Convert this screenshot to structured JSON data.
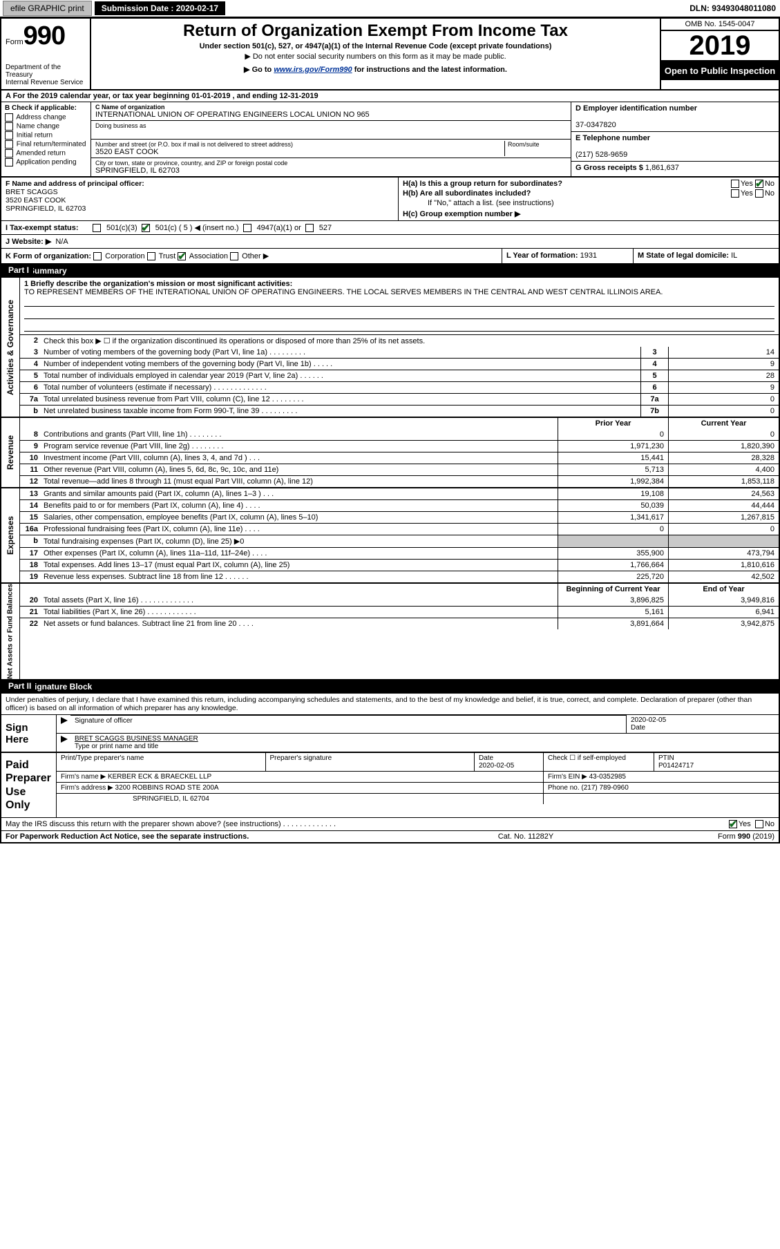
{
  "top": {
    "efile_label": "efile GRAPHIC print",
    "submission_label": "Submission Date : 2020-02-17",
    "dln_label": "DLN: 93493048011080"
  },
  "header": {
    "form_prefix": "Form",
    "form_number": "990",
    "dept1": "Department of the Treasury",
    "dept2": "Internal Revenue Service",
    "title": "Return of Organization Exempt From Income Tax",
    "subtitle": "Under section 501(c), 527, or 4947(a)(1) of the Internal Revenue Code (except private foundations)",
    "note1": "▶ Do not enter social security numbers on this form as it may be made public.",
    "note2_prefix": "▶ Go to ",
    "note2_link": "www.irs.gov/Form990",
    "note2_suffix": " for instructions and the latest information.",
    "omb": "OMB No. 1545-0047",
    "year": "2019",
    "open_public": "Open to Public Inspection"
  },
  "period": {
    "line_a": "A For the 2019 calendar year, or tax year beginning 01-01-2019   , and ending 12-31-2019"
  },
  "block_b": {
    "title": "B Check if applicable:",
    "opts": [
      "Address change",
      "Name change",
      "Initial return",
      "Final return/terminated",
      "Amended return",
      "Application pending"
    ]
  },
  "block_c": {
    "name_label": "C Name of organization",
    "name": "INTERNATIONAL UNION OF OPERATING ENGINEERS LOCAL UNION NO 965",
    "dba_label": "Doing business as",
    "addr_label": "Number and street (or P.O. box if mail is not delivered to street address)",
    "room_label": "Room/suite",
    "addr": "3520 EAST COOK",
    "city_label": "City or town, state or province, country, and ZIP or foreign postal code",
    "city": "SPRINGFIELD, IL  62703"
  },
  "block_d": {
    "label": "D Employer identification number",
    "value": "37-0347820"
  },
  "block_e": {
    "label": "E Telephone number",
    "value": "(217) 528-9659"
  },
  "block_g": {
    "label": "G Gross receipts $",
    "value": "1,861,637"
  },
  "block_f": {
    "label": "F Name and address of principal officer:",
    "line1": "BRET SCAGGS",
    "line2": "3520 EAST COOK",
    "line3": "SPRINGFIELD, IL  62703"
  },
  "block_h": {
    "ha": "H(a)  Is this a group return for subordinates?",
    "ha_yes": "Yes",
    "ha_no": "No",
    "hb": "H(b)  Are all subordinates included?",
    "hb_yes": "Yes",
    "hb_no": "No",
    "hb_note": "If \"No,\" attach a list. (see instructions)",
    "hc": "H(c)  Group exemption number ▶"
  },
  "block_i": {
    "label": "I  Tax-exempt status:",
    "o1": "501(c)(3)",
    "o2": "501(c) ( 5 ) ◀ (insert no.)",
    "o3": "4947(a)(1) or",
    "o4": "527"
  },
  "block_j": {
    "label": "J  Website: ▶",
    "value": "N/A"
  },
  "block_k": {
    "label": "K Form of organization:",
    "opts": [
      "Corporation",
      "Trust",
      "Association",
      "Other ▶"
    ]
  },
  "block_l": {
    "label": "L Year of formation:",
    "value": "1931"
  },
  "block_m": {
    "label": "M State of legal domicile:",
    "value": "IL"
  },
  "part1": {
    "tag": "Part I",
    "title": "Summary",
    "mission_label": "1  Briefly describe the organization's mission or most significant activities:",
    "mission": "TO REPRESENT MEMBERS OF THE INTERATIONAL UNION OF OPERATING ENGINEERS. THE LOCAL SERVES MEMBERS IN THE CENTRAL AND WEST CENTRAL ILLINOIS AREA.",
    "line2": "Check this box ▶ ☐  if the organization discontinued its operations or disposed of more than 25% of its net assets.",
    "sidetab_ag": "Activities & Governance",
    "sidetab_rev": "Revenue",
    "sidetab_exp": "Expenses",
    "sidetab_net": "Net Assets or Fund Balances",
    "rows_ag": [
      {
        "n": "3",
        "d": "Number of voting members of the governing body (Part VI, line 1a)  .  .  .  .  .  .  .  .  .",
        "b": "3",
        "v": "14"
      },
      {
        "n": "4",
        "d": "Number of independent voting members of the governing body (Part VI, line 1b)  .  .  .  .  .",
        "b": "4",
        "v": "9"
      },
      {
        "n": "5",
        "d": "Total number of individuals employed in calendar year 2019 (Part V, line 2a)  .  .  .  .  .  .",
        "b": "5",
        "v": "28"
      },
      {
        "n": "6",
        "d": "Total number of volunteers (estimate if necessary)  .  .  .  .  .  .  .  .  .  .  .  .  .",
        "b": "6",
        "v": "9"
      },
      {
        "n": "7a",
        "d": "Total unrelated business revenue from Part VIII, column (C), line 12  .  .  .  .  .  .  .  .",
        "b": "7a",
        "v": "0"
      },
      {
        "n": "b",
        "d": "Net unrelated business taxable income from Form 990-T, line 39  .  .  .  .  .  .  .  .  .",
        "b": "7b",
        "v": "0"
      }
    ],
    "col_head_prior": "Prior Year",
    "col_head_current": "Current Year",
    "rows_rev": [
      {
        "n": "8",
        "d": "Contributions and grants (Part VIII, line 1h)  .  .  .  .  .  .  .  .",
        "p": "0",
        "c": "0"
      },
      {
        "n": "9",
        "d": "Program service revenue (Part VIII, line 2g)  .  .  .  .  .  .  .  .",
        "p": "1,971,230",
        "c": "1,820,390"
      },
      {
        "n": "10",
        "d": "Investment income (Part VIII, column (A), lines 3, 4, and 7d )  .  .  .",
        "p": "15,441",
        "c": "28,328"
      },
      {
        "n": "11",
        "d": "Other revenue (Part VIII, column (A), lines 5, 6d, 8c, 9c, 10c, and 11e)",
        "p": "5,713",
        "c": "4,400"
      },
      {
        "n": "12",
        "d": "Total revenue—add lines 8 through 11 (must equal Part VIII, column (A), line 12)",
        "p": "1,992,384",
        "c": "1,853,118"
      }
    ],
    "rows_exp": [
      {
        "n": "13",
        "d": "Grants and similar amounts paid (Part IX, column (A), lines 1–3 )  .  .  .",
        "p": "19,108",
        "c": "24,563"
      },
      {
        "n": "14",
        "d": "Benefits paid to or for members (Part IX, column (A), line 4)  .  .  .  .",
        "p": "50,039",
        "c": "44,444"
      },
      {
        "n": "15",
        "d": "Salaries, other compensation, employee benefits (Part IX, column (A), lines 5–10)",
        "p": "1,341,617",
        "c": "1,267,815"
      },
      {
        "n": "16a",
        "d": "Professional fundraising fees (Part IX, column (A), line 11e)  .  .  .  .",
        "p": "0",
        "c": "0"
      },
      {
        "n": "b",
        "d": "Total fundraising expenses (Part IX, column (D), line 25) ▶0",
        "p": "",
        "c": "",
        "shade": true
      },
      {
        "n": "17",
        "d": "Other expenses (Part IX, column (A), lines 11a–11d, 11f–24e)  .  .  .  .",
        "p": "355,900",
        "c": "473,794"
      },
      {
        "n": "18",
        "d": "Total expenses. Add lines 13–17 (must equal Part IX, column (A), line 25)",
        "p": "1,766,664",
        "c": "1,810,616"
      },
      {
        "n": "19",
        "d": "Revenue less expenses. Subtract line 18 from line 12  .  .  .  .  .  .",
        "p": "225,720",
        "c": "42,502"
      }
    ],
    "col_head_begin": "Beginning of Current Year",
    "col_head_end": "End of Year",
    "rows_net": [
      {
        "n": "20",
        "d": "Total assets (Part X, line 16)  .  .  .  .  .  .  .  .  .  .  .  .  .",
        "p": "3,896,825",
        "c": "3,949,816"
      },
      {
        "n": "21",
        "d": "Total liabilities (Part X, line 26)  .  .  .  .  .  .  .  .  .  .  .  .",
        "p": "5,161",
        "c": "6,941"
      },
      {
        "n": "22",
        "d": "Net assets or fund balances. Subtract line 21 from line 20  .  .  .  .",
        "p": "3,891,664",
        "c": "3,942,875"
      }
    ]
  },
  "part2": {
    "tag": "Part II",
    "title": "Signature Block",
    "declare": "Under penalties of perjury, I declare that I have examined this return, including accompanying schedules and statements, and to the best of my knowledge and belief, it is true, correct, and complete. Declaration of preparer (other than officer) is based on all information of which preparer has any knowledge.",
    "sign_here": "Sign Here",
    "sig_officer_label": "Signature of officer",
    "sig_date": "2020-02-05",
    "sig_date_label": "Date",
    "sig_name": "BRET SCAGGS  BUSINESS MANAGER",
    "sig_name_label": "Type or print name and title",
    "paid_prep": "Paid Preparer Use Only",
    "prep_name_label": "Print/Type preparer's name",
    "prep_sig_label": "Preparer's signature",
    "prep_date_label": "Date",
    "prep_date": "2020-02-05",
    "prep_self_label": "Check ☐ if self-employed",
    "ptin_label": "PTIN",
    "ptin": "P01424717",
    "firm_name_label": "Firm's name    ▶",
    "firm_name": "KERBER ECK & BRAECKEL LLP",
    "firm_ein_label": "Firm's EIN ▶",
    "firm_ein": "43-0352985",
    "firm_addr_label": "Firm's address ▶",
    "firm_addr1": "3200 ROBBINS ROAD STE 200A",
    "firm_addr2": "SPRINGFIELD, IL  62704",
    "phone_label": "Phone no.",
    "phone": "(217) 789-0960",
    "irs_discuss": "May the IRS discuss this return with the preparer shown above? (see instructions)  .  .  .  .  .  .  .  .  .  .  .  .  .",
    "irs_yes": "Yes",
    "irs_no": "No"
  },
  "footer": {
    "left": "For Paperwork Reduction Act Notice, see the separate instructions.",
    "mid": "Cat. No. 11282Y",
    "right": "Form 990 (2019)"
  },
  "colors": {
    "bg": "#ffffff",
    "fg": "#000000",
    "link": "#003399",
    "check": "#10691b",
    "shade": "#c9c9c9",
    "button_bg": "#bfbfbf"
  }
}
